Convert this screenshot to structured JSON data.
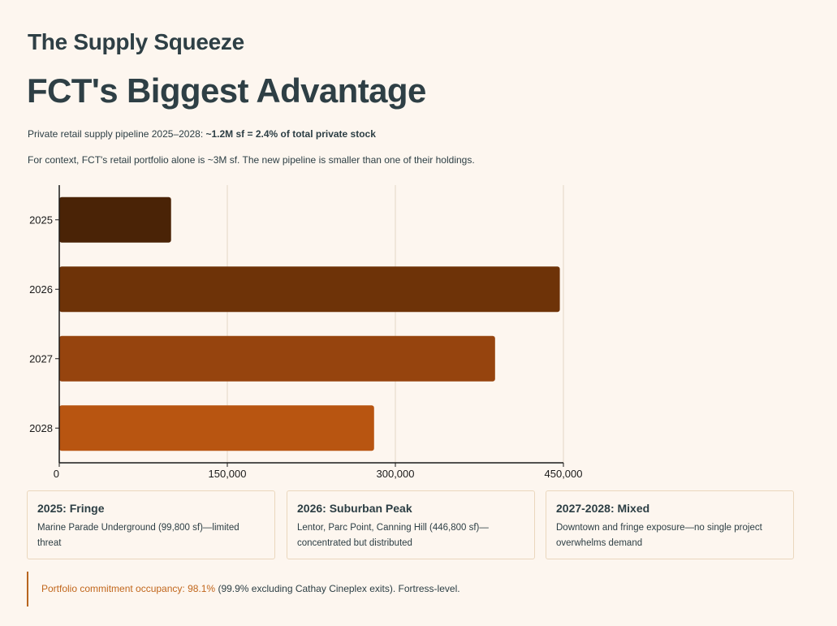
{
  "header": {
    "subtitle": "The Supply Squeeze",
    "title": "FCT's Biggest Advantage",
    "line1_text": "Private retail supply pipeline 2025–2028: ",
    "line1_bold": "~1.2M sf = 2.4% of total private stock",
    "line2": "For context, FCT's retail portfolio alone is ~3M sf. The new pipeline is smaller than one of their holdings."
  },
  "chart_data": {
    "type": "bar",
    "orientation": "horizontal",
    "categories": [
      "2025",
      "2026",
      "2027",
      "2028"
    ],
    "values": [
      99800,
      446800,
      389000,
      281000
    ],
    "colors": [
      "#4a2306",
      "#6e3308",
      "#96440e",
      "#b85511"
    ],
    "xlim": [
      0,
      450000
    ],
    "xticks": [
      0,
      150000,
      300000,
      450000
    ],
    "xtick_labels": [
      "0",
      "150,000",
      "300,000",
      "450,000"
    ],
    "grid": true,
    "title": "",
    "xlabel": "",
    "ylabel": ""
  },
  "cards": [
    {
      "title": "2025: Fringe",
      "text": "Marine Parade Underground (99,800 sf)—limited threat"
    },
    {
      "title": "2026: Suburban Peak",
      "text": "Lentor, Parc Point, Canning Hill (446,800 sf)—concentrated but distributed"
    },
    {
      "title": "2027-2028: Mixed",
      "text": "Downtown and fringe exposure—no single project overwhelms demand"
    }
  ],
  "callout": {
    "accent": "Portfolio commitment occupancy: 98.1%",
    "text": " (99.9% excluding Cathay Cineplex exits). Fortress-level."
  },
  "colors": {
    "background": "#fdf6ef",
    "heading": "#2e3f45",
    "accent": "#c1661b",
    "card_border": "#ead7bd"
  }
}
